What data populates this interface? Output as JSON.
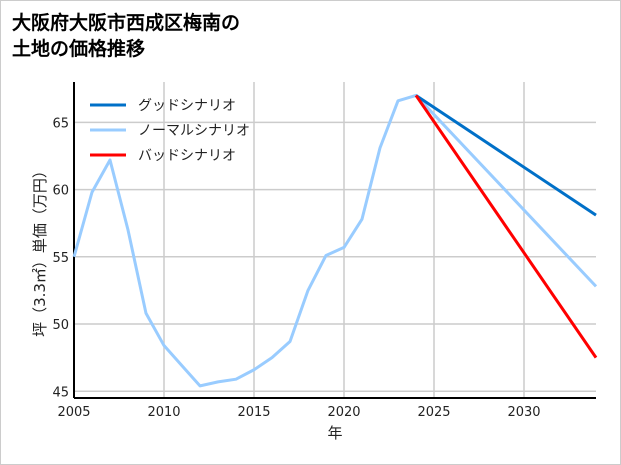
{
  "chart_data": {
    "type": "line",
    "title_lines": [
      "大阪府大阪市西成区梅南の",
      "土地の価格推移"
    ],
    "xlabel": "年",
    "ylabel": "坪（3.3㎡）単価（万円）",
    "xlim": [
      2005,
      2034
    ],
    "ylim": [
      44.5,
      68
    ],
    "xticks": [
      2005,
      2010,
      2015,
      2020,
      2025,
      2030
    ],
    "yticks": [
      45,
      50,
      55,
      60,
      65
    ],
    "grid": true,
    "legend_position": "top-left",
    "series": [
      {
        "name": "グッドシナリオ",
        "color": "#0070c8",
        "x": [
          2024,
          2034
        ],
        "y": [
          67.0,
          58.1
        ]
      },
      {
        "name": "ノーマルシナリオ",
        "color": "#99ccff",
        "x": [
          2005,
          2006,
          2007,
          2008,
          2009,
          2010,
          2011,
          2012,
          2013,
          2014,
          2015,
          2016,
          2017,
          2018,
          2019,
          2020,
          2021,
          2022,
          2023,
          2024,
          2034
        ],
        "y": [
          55.0,
          59.8,
          62.2,
          57.0,
          50.8,
          48.4,
          46.9,
          45.4,
          45.7,
          45.9,
          46.6,
          47.5,
          48.7,
          52.5,
          55.1,
          55.7,
          57.8,
          63.1,
          66.6,
          67.0,
          52.8
        ]
      },
      {
        "name": "バッドシナリオ",
        "color": "#ff0000",
        "x": [
          2024,
          2034
        ],
        "y": [
          67.0,
          47.5
        ]
      }
    ]
  }
}
